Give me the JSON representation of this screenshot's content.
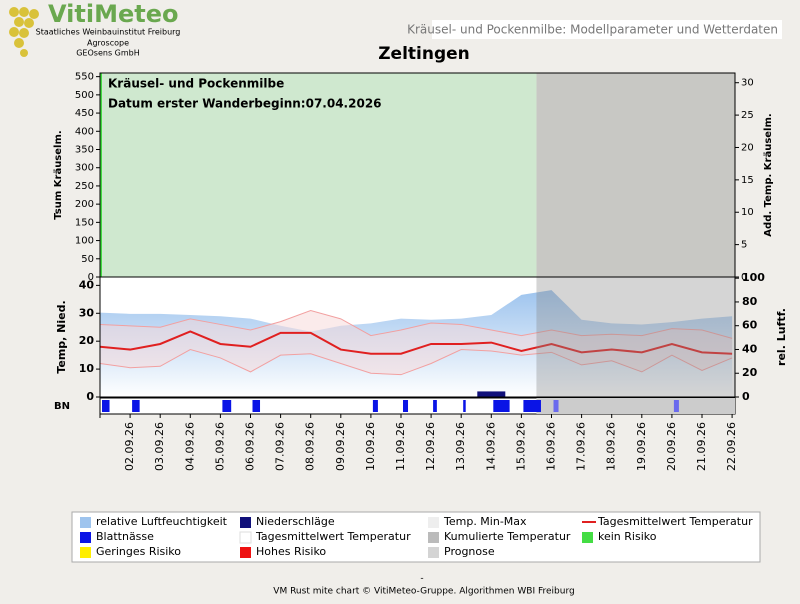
{
  "header": {
    "logo": "VitiMeteo",
    "org1": "Staatliches Weinbauinstitut Freiburg",
    "org2": "Agroscope",
    "org3": "GEOsens GmbH",
    "banner": "Kräusel- und Pockenmilbe: Modellparameter und Wetterdaten"
  },
  "chart_data": {
    "type": "line",
    "title": "Zeltingen",
    "annotations": [
      "Kräusel- und Pockenmilbe",
      "Datum  erster Wanderbeginn:07.04.2026"
    ],
    "top": {
      "ylabel": "Tsum Kräuselm.",
      "y2label": "Add. Temp. Kräuselm.",
      "ylim": [
        0,
        560
      ],
      "yticks": [
        0,
        50,
        100,
        150,
        200,
        250,
        300,
        350,
        400,
        450,
        500,
        550
      ],
      "y2lim": [
        0,
        31.5
      ],
      "y2ticks": [
        0,
        5,
        10,
        15,
        20,
        25,
        30
      ],
      "risk_color": "#cfe8cf",
      "prognosis_color": "#c8c8c4"
    },
    "ylabel": "Temp, Nied.",
    "y2label": "rel. Luftf.",
    "ylim": [
      0,
      43
    ],
    "yticks": [
      0,
      10,
      20,
      30,
      40
    ],
    "y2lim": [
      0,
      101
    ],
    "y2ticks": [
      0,
      20,
      40,
      60,
      80,
      100
    ],
    "categories": [
      null,
      "02.09.26",
      "03.09.26",
      "04.09.26",
      "05.09.26",
      "06.09.26",
      "07.09.26",
      "08.09.26",
      "09.09.26",
      "10.09.26",
      "11.09.26",
      "12.09.26",
      "13.09.26",
      "14.09.26",
      "15.09.26",
      "16.09.26",
      "17.09.26",
      "18.09.26",
      "19.09.26",
      "20.09.26",
      "21.09.26",
      "22.09.26"
    ],
    "forecast_from": 14.5,
    "humidity": {
      "color": "#9ec4ee",
      "axis": "y2",
      "values": [
        71,
        70,
        70,
        69,
        68,
        66,
        60,
        55,
        60,
        62,
        66,
        65,
        66,
        69,
        86,
        90,
        65,
        62,
        61,
        63,
        66,
        68
      ]
    },
    "tmax": {
      "color": "#f2a0a0",
      "values": [
        26,
        25.5,
        25,
        28,
        26,
        24,
        27,
        31,
        28,
        22,
        24,
        26.5,
        26,
        24,
        22,
        24,
        22,
        22.5,
        22,
        24.5,
        24,
        21
      ]
    },
    "tmin": {
      "color": "#f2a0a0",
      "values": [
        12,
        10.5,
        11,
        17,
        14,
        9,
        15,
        15.5,
        12,
        8.5,
        8,
        12,
        17,
        16.5,
        15,
        16,
        11.5,
        13,
        9,
        15,
        9.5,
        14
      ]
    },
    "tmean": {
      "color": "#e02020",
      "values": [
        18,
        17,
        19,
        23.5,
        19,
        18,
        23,
        23,
        17,
        15.5,
        15.5,
        19,
        19,
        19.5,
        16.5,
        19,
        16,
        17,
        16,
        19,
        16,
        15.5
      ]
    },
    "precip": {
      "color": "#10107a",
      "values": [
        0,
        0,
        0,
        0,
        0,
        0,
        0,
        0,
        0,
        0,
        0,
        0,
        0,
        2,
        0,
        0,
        0,
        0,
        0,
        0,
        0,
        0
      ]
    },
    "bn": {
      "label": "BN",
      "color": "#0a14e6",
      "forecast_color": "#6a6aee",
      "values": [
        6,
        6,
        0,
        0,
        7,
        6,
        0,
        0,
        0,
        4,
        4,
        3,
        2,
        13,
        14,
        4,
        0,
        0,
        0,
        4,
        0,
        0
      ]
    },
    "legend": [
      {
        "label": "relative Luftfeuchtigkeit",
        "color": "#9ec4ee"
      },
      {
        "label": "Niederschläge",
        "color": "#10107a"
      },
      {
        "label": "Temp. Min-Max",
        "color": "#eeeeee"
      },
      {
        "label": "Tagesmittelwert Temperatur",
        "color": "#e02020"
      },
      {
        "label": "Blattnässe",
        "color": "#0a14e6"
      },
      {
        "label": "Tagesmittelwert Temperatur",
        "color": "#ffffff"
      },
      {
        "label": "Kumulierte Temperatur",
        "color": "#bbbbbb"
      },
      {
        "label": "kein Risiko",
        "color": "#44dd44"
      },
      {
        "label": "Geringes Risiko",
        "color": "#ffee00"
      },
      {
        "label": "Hohes Risiko",
        "color": "#ee1111"
      },
      {
        "label": "Prognose",
        "color": "#d4d4d4"
      }
    ],
    "footer": [
      "-",
      "VM Rust mite chart © VitiMeteo-Gruppe. Algorithmen WBI Freiburg"
    ]
  }
}
